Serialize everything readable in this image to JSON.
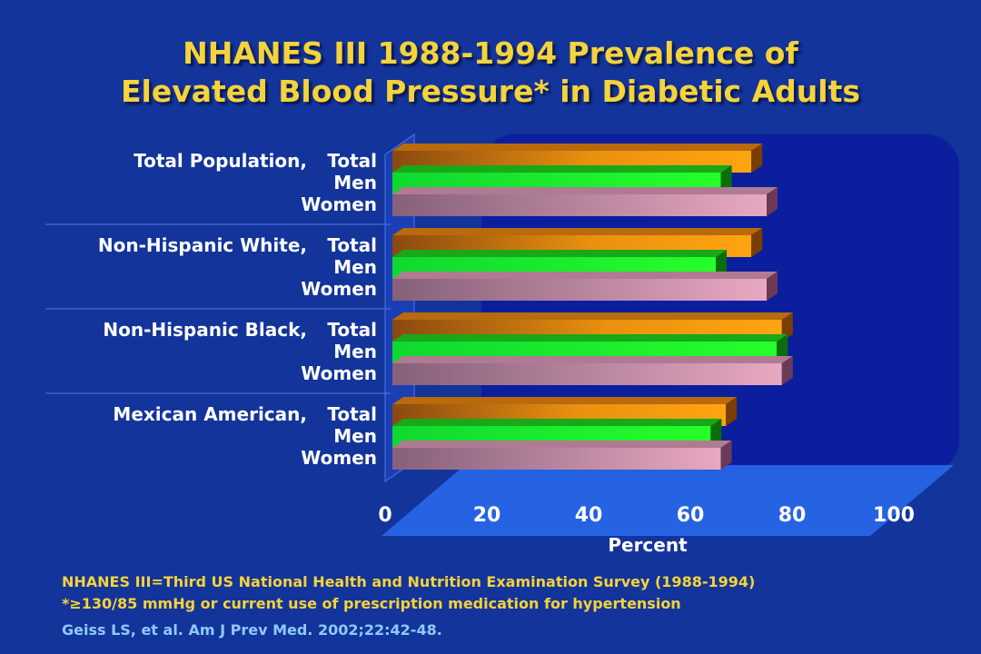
{
  "title_line1": "NHANES III 1988-1994 Prevalence of",
  "title_line2": "Elevated Blood Pressure* in Diabetic Adults",
  "footnotes": {
    "line1": "NHANES III=Third US National Health and Nutrition Examination Survey (1988-1994)",
    "line2": "*≥130/85 mmHg or current use of prescription medication for hypertension"
  },
  "citation": "Geiss LS, et al. Am J Prev Med. 2002;22:42-48.",
  "colors": {
    "background": "#13349a",
    "title": "#f5d33a",
    "total": "#f59a10",
    "men": "#1ee61e",
    "women": "#d9a2b6",
    "citation": "#8ec9ff"
  },
  "chart_data": {
    "type": "bar",
    "orientation": "horizontal",
    "xlabel": "Percent",
    "xlim": [
      0,
      100
    ],
    "xticks": [
      "0",
      "20",
      "40",
      "60",
      "80",
      "100"
    ],
    "grid": false,
    "legend": "none",
    "groups": [
      {
        "name": "Total Population,",
        "rows": [
          {
            "label": "Total",
            "value": 72
          },
          {
            "label": "Men",
            "value": 66
          },
          {
            "label": "Women",
            "value": 75
          }
        ]
      },
      {
        "name": "Non-Hispanic White,",
        "rows": [
          {
            "label": "Total",
            "value": 72
          },
          {
            "label": "Men",
            "value": 65
          },
          {
            "label": "Women",
            "value": 75
          }
        ]
      },
      {
        "name": "Non-Hispanic Black,",
        "rows": [
          {
            "label": "Total",
            "value": 78
          },
          {
            "label": "Men",
            "value": 77
          },
          {
            "label": "Women",
            "value": 78
          }
        ]
      },
      {
        "name": "Mexican American,",
        "rows": [
          {
            "label": "Total",
            "value": 67
          },
          {
            "label": "Men",
            "value": 64
          },
          {
            "label": "Women",
            "value": 66
          }
        ]
      }
    ]
  }
}
